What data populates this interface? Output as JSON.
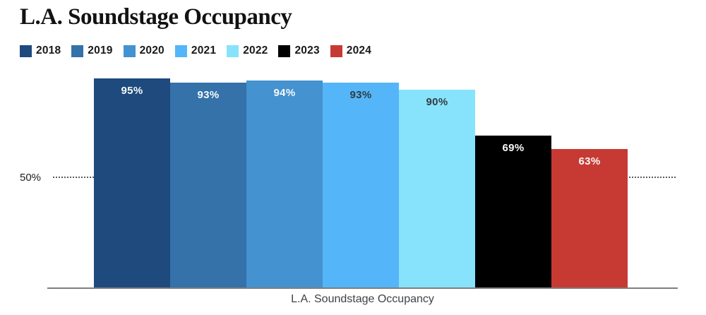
{
  "header": {
    "title": "L.A. Soundstage Occupancy"
  },
  "chart_data": {
    "type": "bar",
    "title": "L.A. Soundstage Occupancy",
    "categories": [
      "2018",
      "2019",
      "2020",
      "2021",
      "2022",
      "2023",
      "2024"
    ],
    "values": [
      95,
      93,
      94,
      93,
      90,
      69,
      63
    ],
    "value_labels": [
      "95%",
      "93%",
      "94%",
      "93%",
      "90%",
      "69%",
      "63%"
    ],
    "colors": [
      "#1e4a7e",
      "#3472a9",
      "#4492cf",
      "#54b6f8",
      "#86e3fb",
      "#000000",
      "#c73a33"
    ],
    "value_label_colors": [
      "#f7f9f9",
      "#f7f9f9",
      "#f7f9f9",
      "#333b41",
      "#333b41",
      "#f7f9f9",
      "#f7f9f9"
    ],
    "xlabel": "L.A. Soundstage Occupancy",
    "ylabel": "",
    "ylim": [
      0,
      100
    ],
    "ytick_label": "50%",
    "gridline_value": 50,
    "grid": "single dotted horizontal line at 50%",
    "legend_position": "top-left",
    "legend_entries": [
      "2018",
      "2019",
      "2020",
      "2021",
      "2022",
      "2023",
      "2024"
    ]
  }
}
